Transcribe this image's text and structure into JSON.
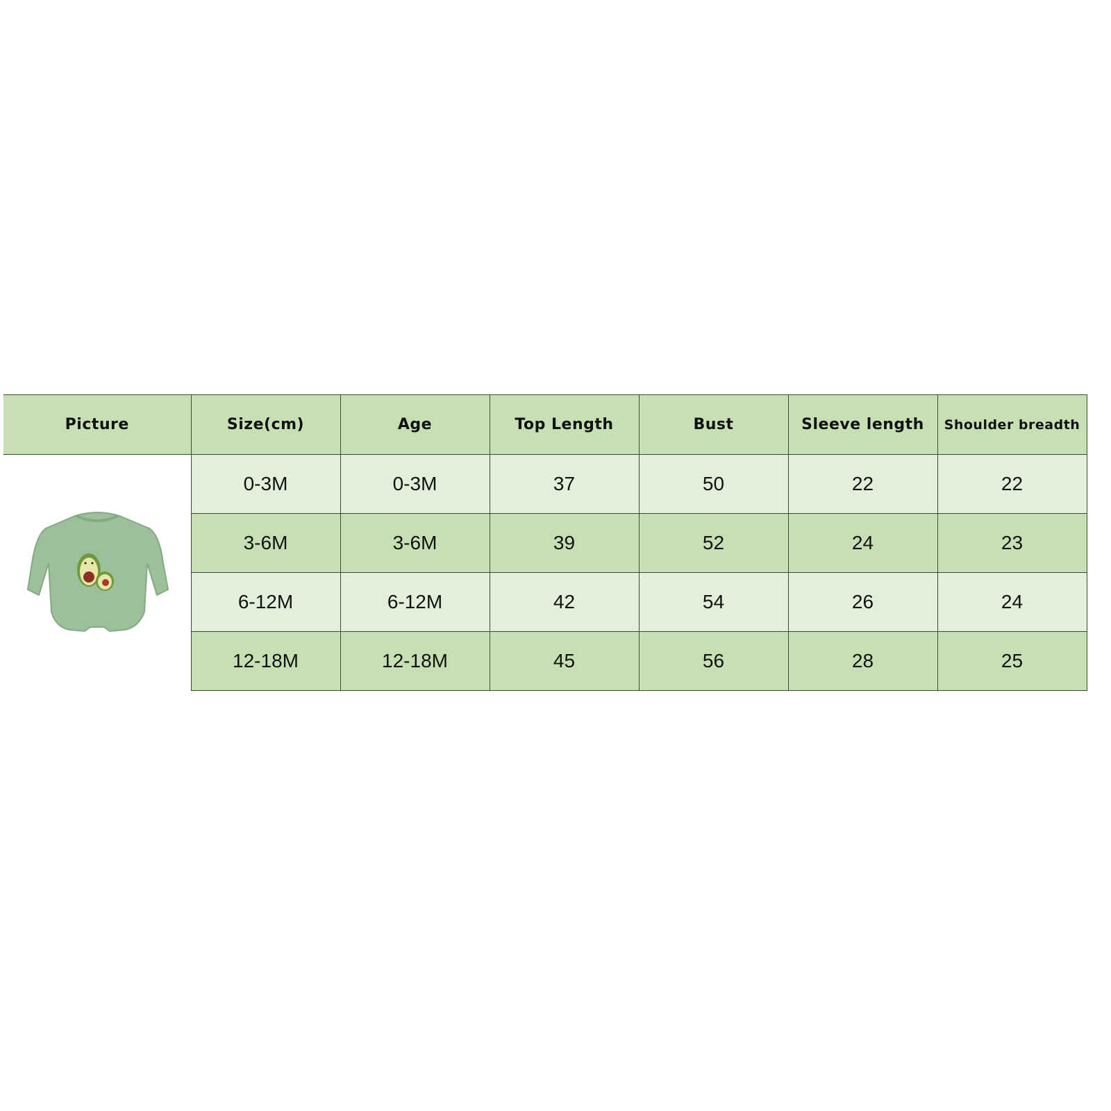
{
  "headers": [
    "Picture",
    "Size(cm)",
    "Age",
    "Top Length",
    "Bust",
    "Sleeve length",
    "Shoulder breadth"
  ],
  "rows": [
    [
      "0-3M",
      "0-3M",
      "37",
      "50",
      "22",
      "22"
    ],
    [
      "3-6M",
      "3-6M",
      "39",
      "52",
      "24",
      "23"
    ],
    [
      "6-12M",
      "6-12M",
      "42",
      "54",
      "26",
      "24"
    ],
    [
      "12-18M",
      "12-18M",
      "45",
      "56",
      "28",
      "25"
    ]
  ],
  "picture": {
    "icon": "avocado-romper-image",
    "color": "#9dbf9b"
  },
  "colors": {
    "header": "#c6e0b4",
    "row_light": "#e2efda",
    "row_dark": "#c6e0b4"
  }
}
